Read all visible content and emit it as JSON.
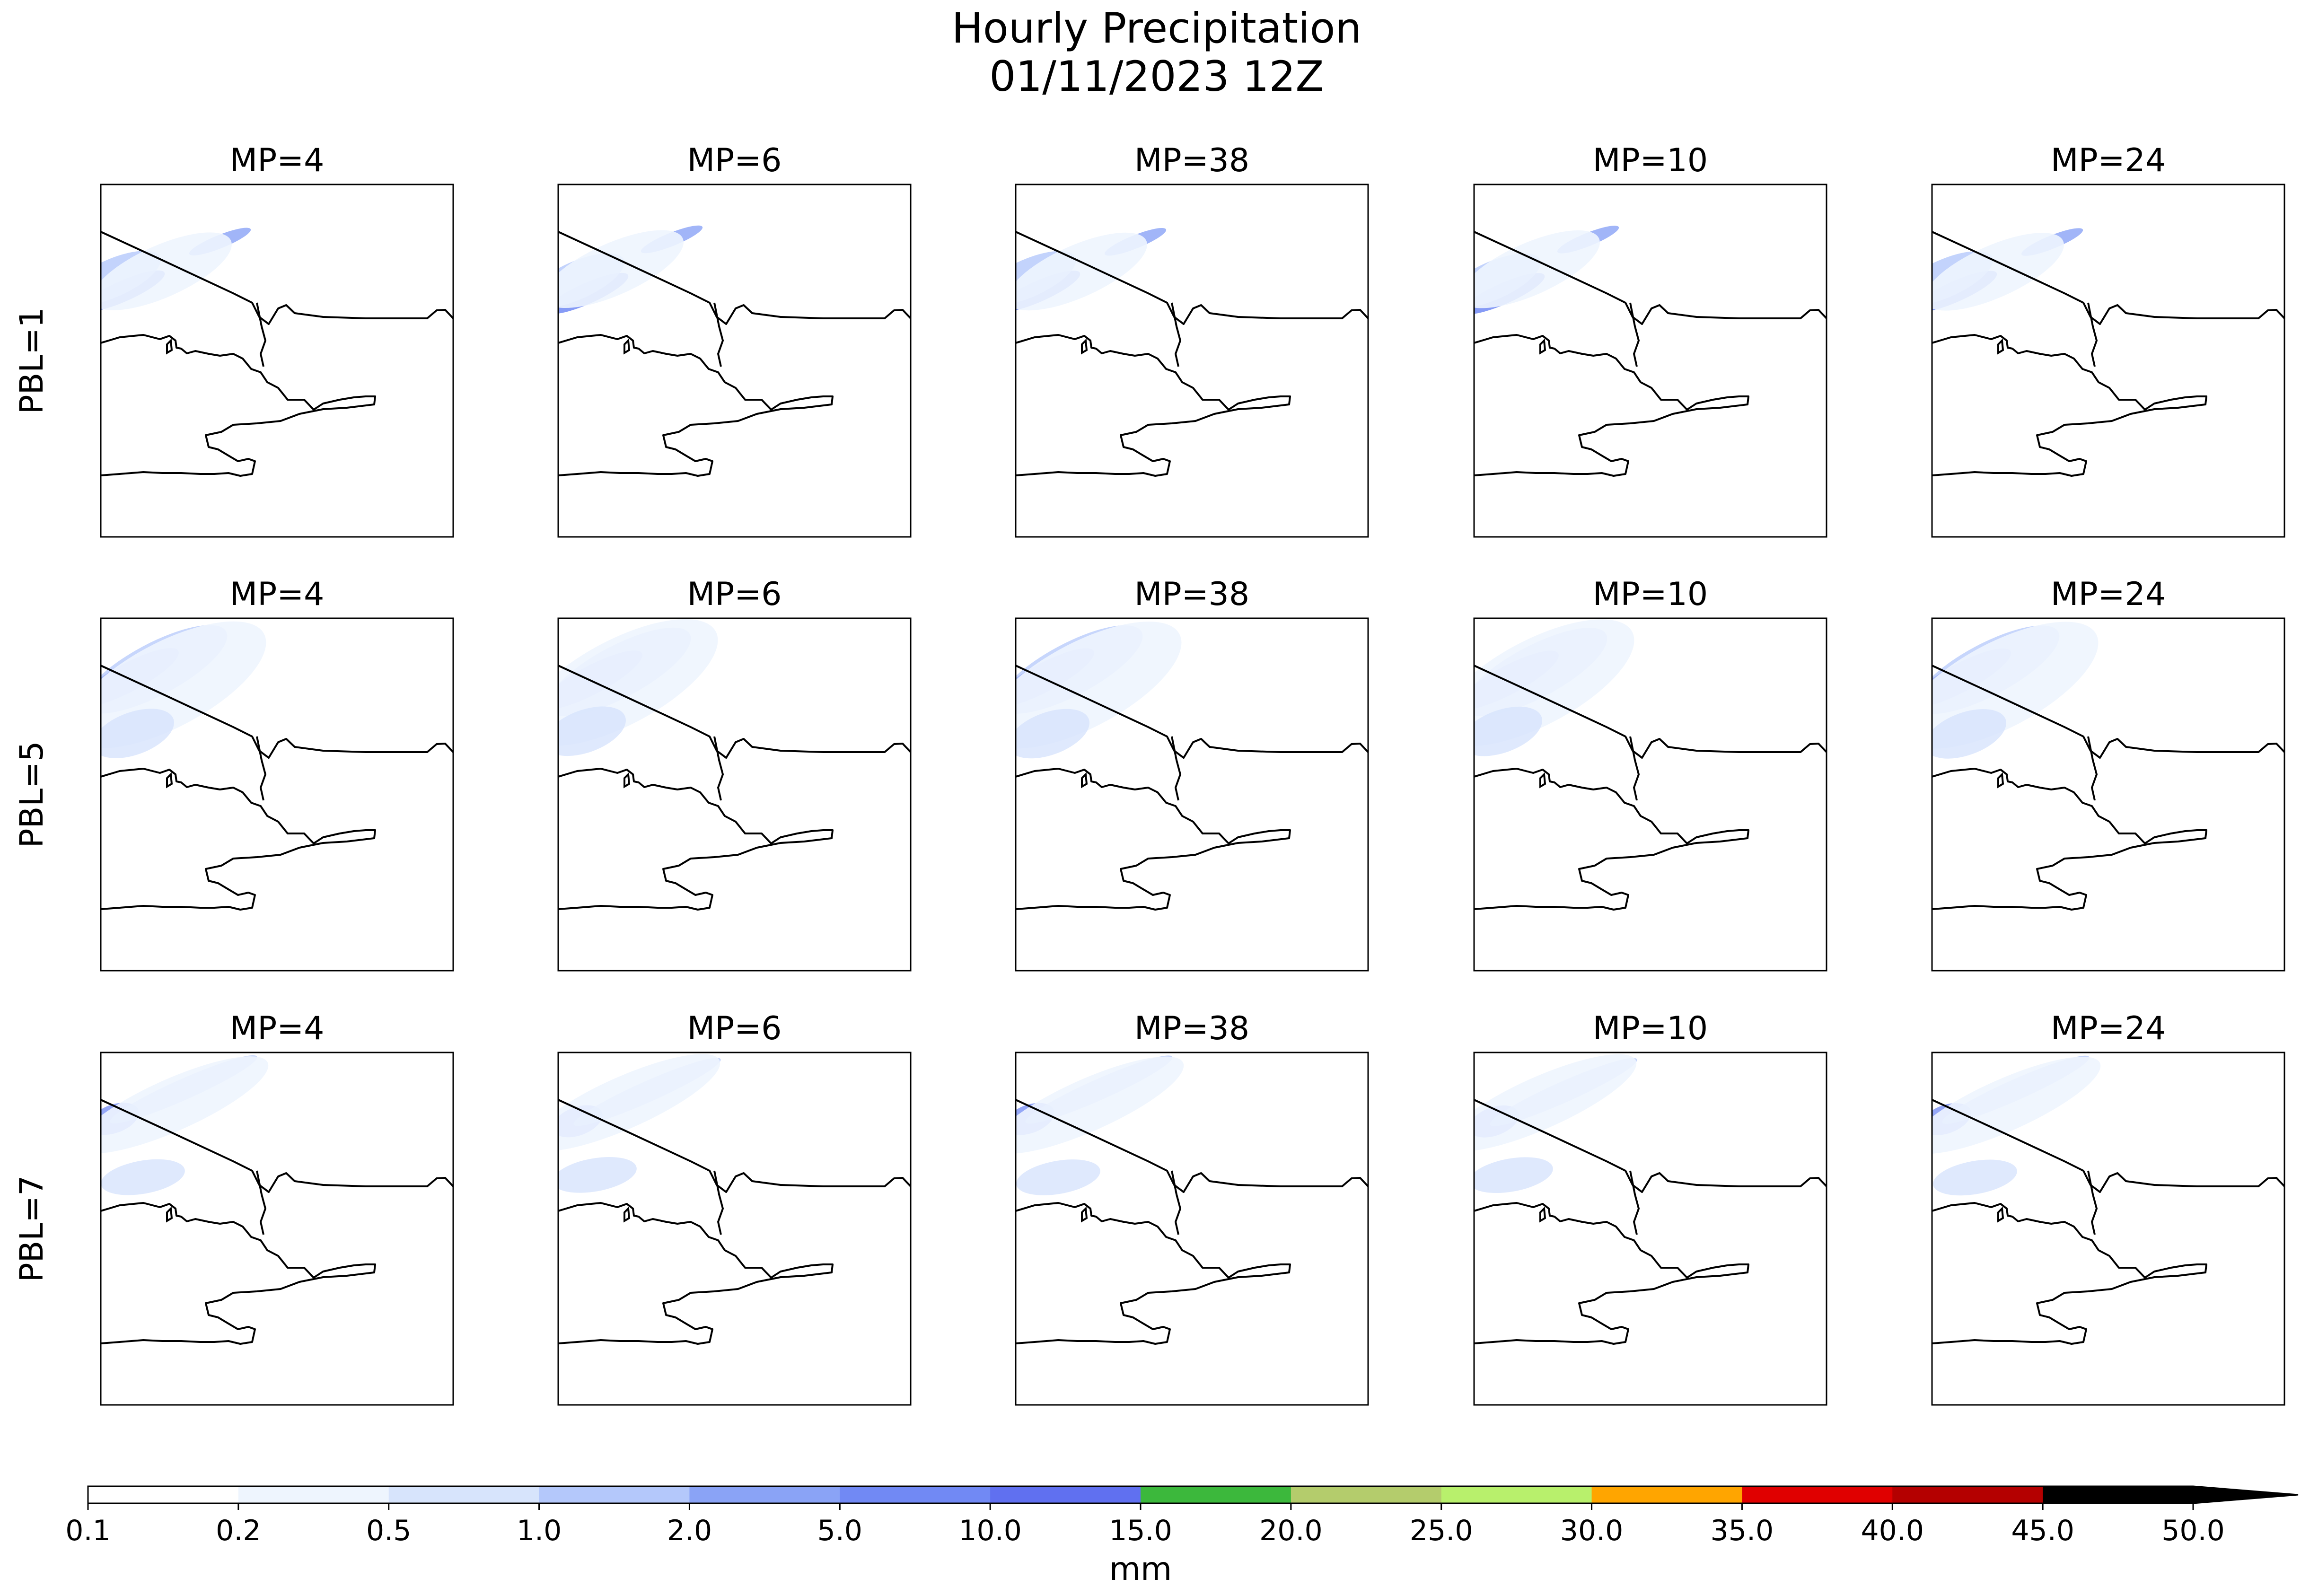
{
  "title": {
    "line1": "Hourly Precipitation",
    "line2": "01/11/2023 12Z"
  },
  "columns": [
    "MP=4",
    "MP=6",
    "MP=38",
    "MP=10",
    "MP=24"
  ],
  "rows": [
    "PBL=1",
    "PBL=5",
    "PBL=7"
  ],
  "colorbar": {
    "label": "mm",
    "ticks": [
      "0.1",
      "0.2",
      "0.5",
      "1.0",
      "2.0",
      "5.0",
      "10.0",
      "15.0",
      "20.0",
      "25.0",
      "30.0",
      "35.0",
      "40.0",
      "45.0",
      "50.0"
    ],
    "colors": [
      "#ffffff",
      "#eef5fe",
      "#d7e4fc",
      "#b4c8fb",
      "#8aa3f6",
      "#7189f4",
      "#6070f0",
      "#3cb83c",
      "#b4cc6c",
      "#b8f06c",
      "#ffa500",
      "#e00000",
      "#b40000",
      "#000000"
    ],
    "extend_color": "#000000"
  },
  "colors": {
    "coastline": "#000000",
    "frame": "#000000"
  }
}
